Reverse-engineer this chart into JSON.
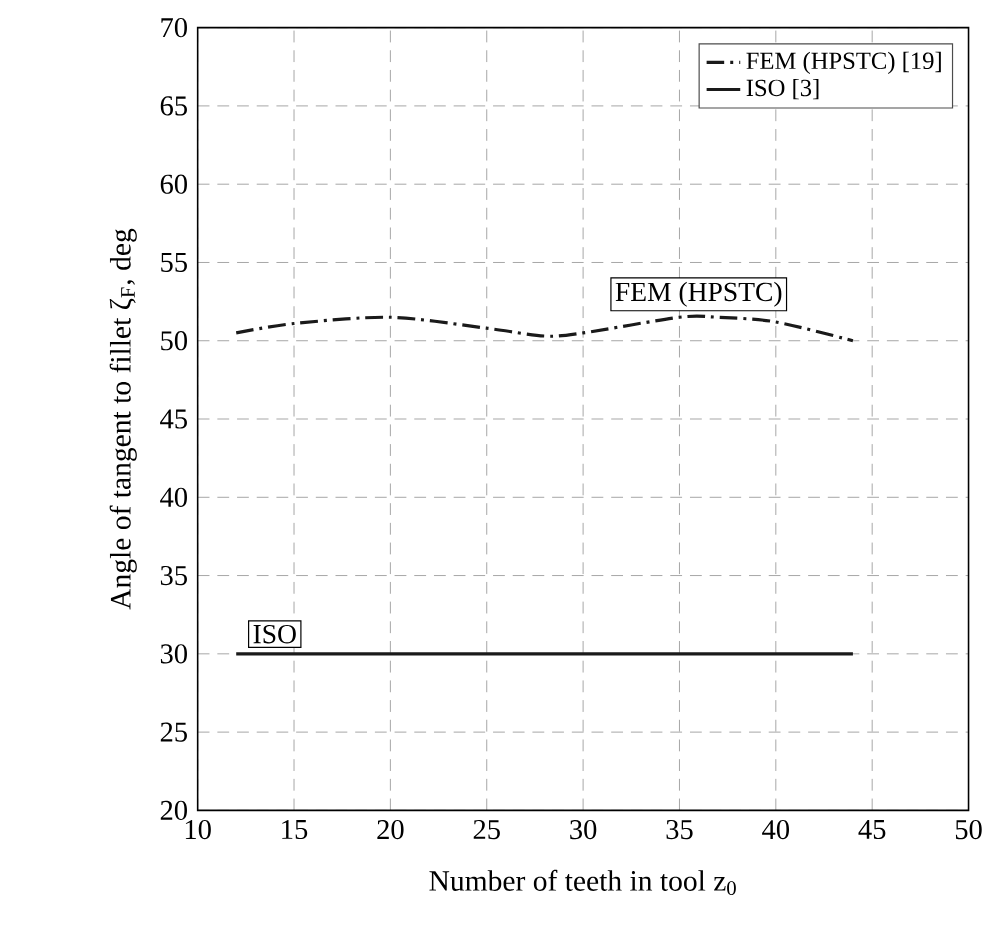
{
  "chart_data": {
    "type": "line",
    "xlabel": "Number of teeth in tool z$_{0}$",
    "ylabel": "Angle of tangent to fillet ζ$_{F}$, deg",
    "series": [
      {
        "name": "FEM (HPSTC) [19]",
        "color": "#1a1a1a",
        "line_style": "dashdot",
        "x": [
          12,
          15,
          20,
          25,
          28,
          30,
          35,
          37,
          40,
          44
        ],
        "values": [
          50.5,
          51.1,
          51.5,
          50.8,
          50.3,
          50.5,
          51.5,
          51.5,
          51.2,
          50.0
        ]
      },
      {
        "name": "ISO [3]",
        "color": "#1a1a1a",
        "line_style": "solid",
        "x": [
          12,
          44
        ],
        "values": [
          30,
          30
        ]
      }
    ],
    "annotations": [
      {
        "text": "FEM (HPSTC)",
        "x": 36,
        "y": 51.5
      },
      {
        "text": "ISO",
        "x": 14,
        "y": 30
      }
    ],
    "xlim": [
      10,
      50
    ],
    "ylim": [
      20,
      70
    ],
    "xticks": [
      10,
      15,
      20,
      25,
      30,
      35,
      40,
      45,
      50
    ],
    "yticks": [
      20,
      25,
      30,
      35,
      40,
      45,
      50,
      55,
      60,
      65,
      70
    ],
    "grid": true,
    "legend": "top right"
  }
}
